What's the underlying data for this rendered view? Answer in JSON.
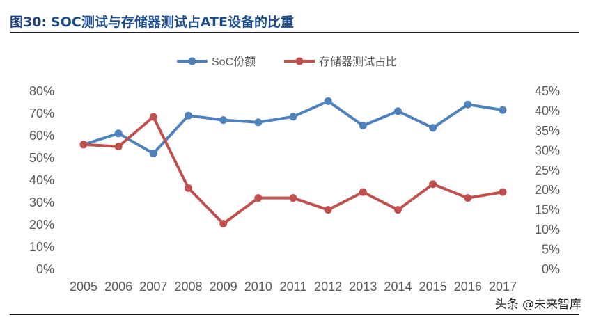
{
  "figure": {
    "label": "图30:",
    "title": "SOC测试与存储器测试占ATE设备的比重"
  },
  "watermark": "头条 @未来智库",
  "chart_data": {
    "type": "line",
    "categories": [
      "2005",
      "2006",
      "2007",
      "2008",
      "2009",
      "2010",
      "2011",
      "2012",
      "2013",
      "2014",
      "2015",
      "2016",
      "2017"
    ],
    "y_left": {
      "ticks": [
        "0%",
        "10%",
        "20%",
        "30%",
        "40%",
        "50%",
        "60%",
        "70%",
        "80%"
      ],
      "ylim": [
        0,
        80
      ]
    },
    "y_right": {
      "ticks": [
        "0%",
        "5%",
        "10%",
        "15%",
        "20%",
        "25%",
        "30%",
        "35%",
        "40%",
        "45%"
      ],
      "ylim": [
        0,
        45
      ]
    },
    "legend_position": "top-center",
    "grid": false,
    "series": [
      {
        "name": "SoC份额",
        "axis": "left",
        "color": "#4f81bd",
        "values": [
          56,
          61,
          52,
          69,
          67,
          66,
          68.5,
          75.5,
          64.5,
          71,
          63.5,
          74,
          71.5
        ]
      },
      {
        "name": "存储器测试占比",
        "axis": "right",
        "color": "#c0504d",
        "values": [
          31.5,
          31,
          38.5,
          20.5,
          11.5,
          18,
          18,
          15,
          19.5,
          15,
          21.5,
          18,
          19.5
        ]
      }
    ]
  }
}
